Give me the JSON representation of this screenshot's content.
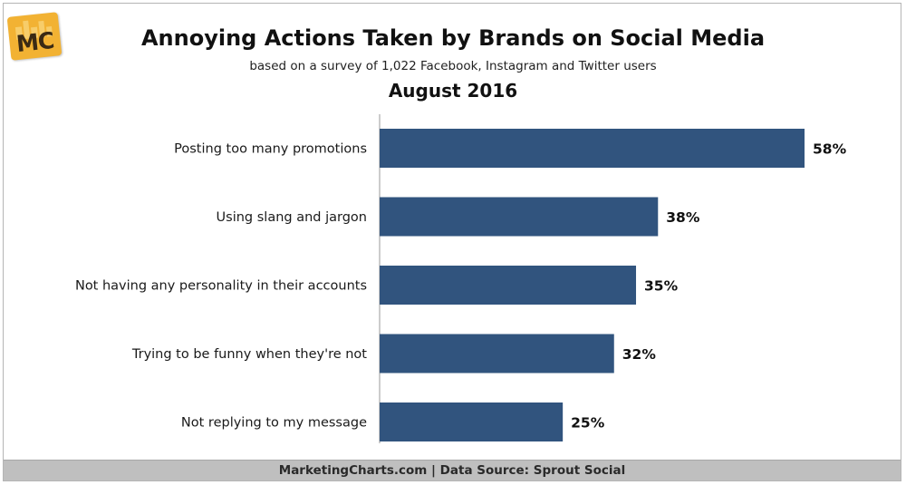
{
  "logo": {
    "text": "MC"
  },
  "colors": {
    "bar": "#31547e",
    "axis": "#9a9a9a",
    "footer_bg": "#bfbfbf"
  },
  "footer": {
    "text": "MarketingCharts.com | Data Source: Sprout Social"
  },
  "chart_data": {
    "type": "bar",
    "orientation": "horizontal",
    "title": "Annoying Actions Taken by Brands on Social Media",
    "subtitle": "based on a survey of 1,022 Facebook, Instagram and Twitter users",
    "date_label": "August 2016",
    "categories": [
      "Posting too many promotions",
      "Using slang and jargon",
      "Not having any personality in their accounts",
      "Trying to be funny when they're not",
      "Not replying to my message"
    ],
    "values": [
      58,
      38,
      35,
      32,
      25
    ],
    "value_labels": [
      "58%",
      "38%",
      "35%",
      "32%",
      "25%"
    ],
    "unit": "%",
    "xlim": [
      0,
      58
    ],
    "grid": false,
    "legend": "none"
  }
}
